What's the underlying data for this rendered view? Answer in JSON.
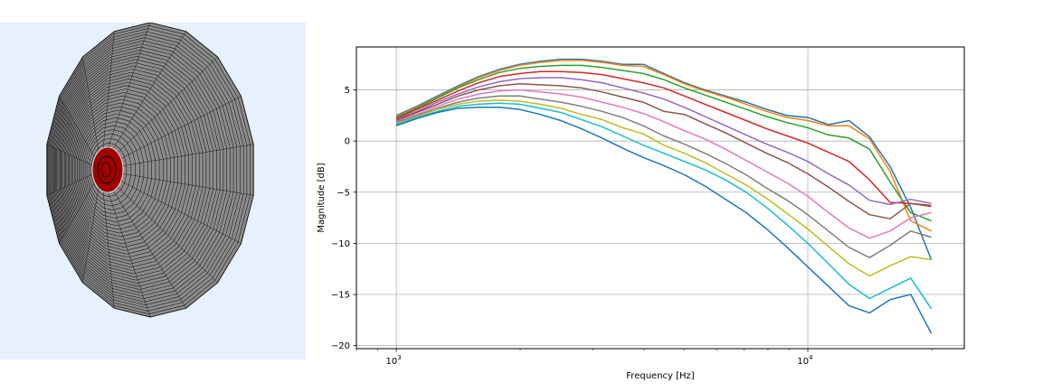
{
  "mesh": {
    "background": "#e6f1fd",
    "fill": "#8c8c8c",
    "line_color": "#1a1a1a",
    "hole_color": "#a00000"
  },
  "chart_data": {
    "type": "line",
    "xlabel": "Frequency [Hz]",
    "ylabel": "Magnitude [dB]",
    "xscale": "log",
    "xlim": [
      800,
      24000
    ],
    "ylim": [
      -20.3,
      9.2
    ],
    "grid": true,
    "x_ticks": [
      {
        "value": 1000,
        "base": "10",
        "exp": "3"
      },
      {
        "value": 10000,
        "base": "10",
        "exp": "4"
      }
    ],
    "y_ticks": [
      5,
      0,
      -5,
      -10,
      -15,
      -20
    ],
    "x": [
      1000,
      1122,
      1259,
      1413,
      1585,
      1778,
      1995,
      2239,
      2512,
      2818,
      3162,
      3548,
      3981,
      4467,
      5012,
      5623,
      6310,
      7079,
      7943,
      8913,
      10000,
      11220,
      12589,
      14125,
      15849,
      17783,
      19953
    ],
    "series": [
      {
        "color": "#1f77b4",
        "values": [
          2.5,
          3.4,
          4.4,
          5.4,
          6.3,
          7.0,
          7.5,
          7.8,
          8.0,
          8.0,
          7.8,
          7.5,
          7.5,
          6.6,
          5.7,
          5.0,
          4.4,
          3.8,
          3.1,
          2.5,
          2.3,
          1.6,
          2.0,
          0.4,
          -2.5,
          -6.5,
          -11.6
        ]
      },
      {
        "color": "#ff7f0e",
        "values": [
          2.4,
          3.3,
          4.3,
          5.3,
          6.2,
          6.9,
          7.4,
          7.7,
          7.9,
          7.9,
          7.7,
          7.4,
          7.3,
          6.5,
          5.6,
          4.9,
          4.3,
          3.6,
          2.9,
          2.3,
          2.0,
          1.5,
          1.5,
          0.2,
          -3.0,
          -7.8,
          -8.8
        ]
      },
      {
        "color": "#2ca02c",
        "values": [
          2.3,
          3.2,
          4.2,
          5.2,
          6.0,
          6.7,
          7.1,
          7.3,
          7.4,
          7.4,
          7.2,
          6.9,
          6.6,
          6.0,
          5.2,
          4.5,
          3.8,
          3.1,
          2.4,
          1.8,
          1.3,
          0.6,
          0.3,
          -0.8,
          -4.0,
          -7.0,
          -7.8
        ]
      },
      {
        "color": "#d62728",
        "values": [
          2.2,
          3.1,
          4.0,
          4.9,
          5.7,
          6.3,
          6.6,
          6.8,
          6.8,
          6.7,
          6.5,
          6.1,
          5.7,
          5.2,
          4.4,
          3.6,
          2.8,
          2.0,
          1.2,
          0.5,
          -0.2,
          -1.1,
          -2.0,
          -3.8,
          -6.0,
          -6.1,
          -6.3
        ]
      },
      {
        "color": "#9467bd",
        "values": [
          2.1,
          2.9,
          3.8,
          4.6,
          5.3,
          5.8,
          6.1,
          6.2,
          6.2,
          6.0,
          5.7,
          5.2,
          4.7,
          4.1,
          3.3,
          2.4,
          1.5,
          0.6,
          -0.3,
          -1.1,
          -2.0,
          -3.2,
          -4.3,
          -5.8,
          -6.2,
          -5.7,
          -6.1
        ]
      },
      {
        "color": "#8c564b",
        "values": [
          2.0,
          2.8,
          3.6,
          4.4,
          5.0,
          5.4,
          5.6,
          5.5,
          5.4,
          5.2,
          4.8,
          4.3,
          3.8,
          2.9,
          2.6,
          1.7,
          0.8,
          -0.2,
          -1.2,
          -2.1,
          -3.2,
          -4.5,
          -5.9,
          -7.2,
          -7.6,
          -6.1,
          -6.4
        ]
      },
      {
        "color": "#e377c2",
        "values": [
          1.9,
          2.6,
          3.4,
          4.1,
          4.6,
          4.9,
          5.0,
          4.8,
          4.6,
          4.3,
          3.8,
          3.3,
          2.7,
          1.9,
          1.0,
          0.2,
          -0.8,
          -1.9,
          -3.0,
          -4.1,
          -5.4,
          -7.0,
          -8.5,
          -9.5,
          -8.8,
          -7.5,
          -7.0
        ]
      },
      {
        "color": "#7f7f7f",
        "values": [
          1.8,
          2.5,
          3.2,
          3.8,
          4.2,
          4.4,
          4.4,
          4.1,
          3.8,
          3.4,
          2.9,
          2.3,
          1.5,
          0.5,
          -0.3,
          -1.2,
          -2.2,
          -3.3,
          -4.6,
          -5.8,
          -7.2,
          -8.8,
          -10.4,
          -11.4,
          -10.2,
          -8.8,
          -9.4
        ]
      },
      {
        "color": "#bcbd22",
        "values": [
          1.7,
          2.4,
          3.1,
          3.6,
          3.9,
          4.0,
          3.9,
          3.6,
          3.2,
          2.6,
          2.1,
          1.3,
          0.7,
          -0.4,
          -1.2,
          -2.1,
          -3.2,
          -4.3,
          -5.6,
          -7.1,
          -8.6,
          -10.3,
          -12.0,
          -13.2,
          -12.2,
          -11.3,
          -11.6
        ]
      },
      {
        "color": "#17becf",
        "values": [
          1.6,
          2.3,
          2.9,
          3.4,
          3.6,
          3.7,
          3.6,
          3.2,
          2.8,
          2.1,
          1.4,
          0.5,
          -0.4,
          -1.2,
          -2.0,
          -2.8,
          -3.8,
          -5.0,
          -6.5,
          -8.2,
          -10.0,
          -12.0,
          -14.0,
          -15.4,
          -14.4,
          -13.4,
          -16.4
        ]
      },
      {
        "color": "#1f77b4",
        "values": [
          1.5,
          2.2,
          2.8,
          3.2,
          3.3,
          3.3,
          3.1,
          2.6,
          2.0,
          1.2,
          0.3,
          -0.7,
          -1.6,
          -2.4,
          -3.3,
          -4.4,
          -5.7,
          -7.0,
          -8.6,
          -10.4,
          -12.3,
          -14.2,
          -16.1,
          -16.8,
          -15.5,
          -15.0,
          -18.8
        ]
      }
    ]
  }
}
